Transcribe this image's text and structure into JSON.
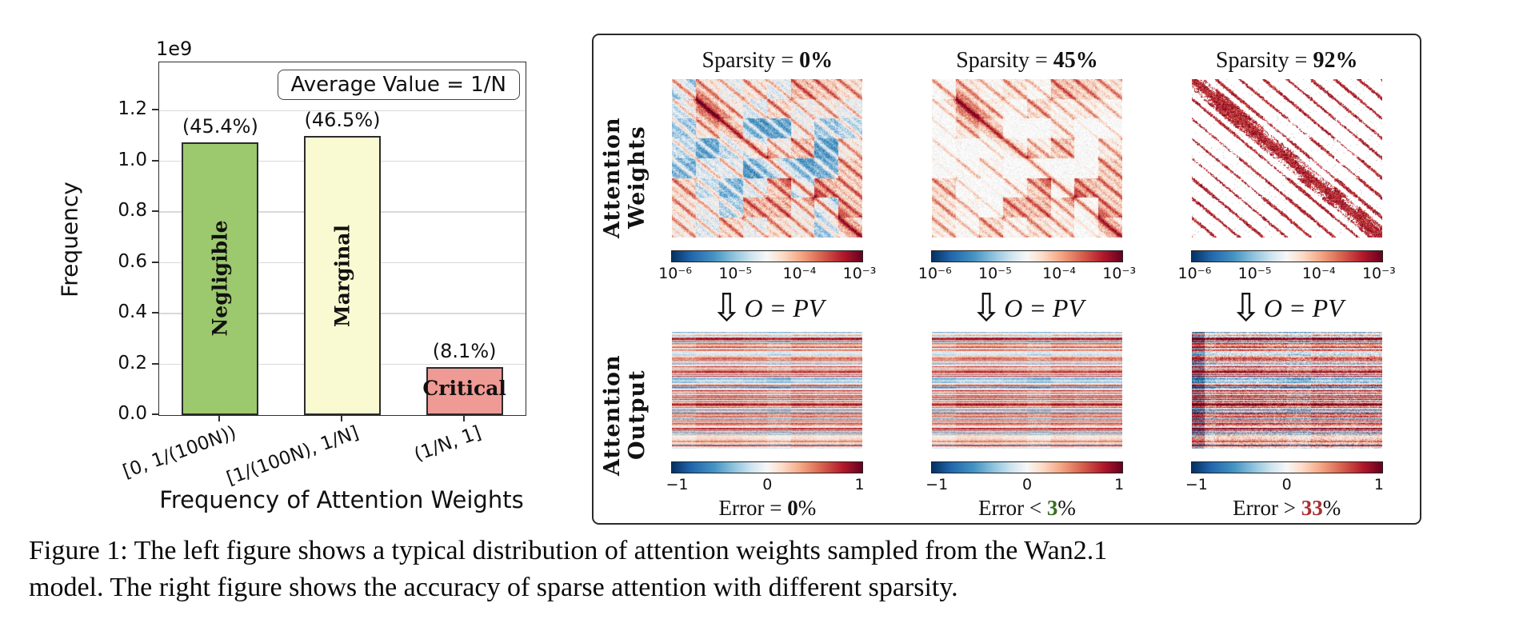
{
  "figure_caption": {
    "line1": "Figure 1: The left figure shows a typical distribution of attention weights sampled from the Wan2.1",
    "line2": "model. The right figure shows the accuracy of sparse attention with different sparsity."
  },
  "chart_data": {
    "type": "bar",
    "title": "",
    "categories": [
      "[0, 1/(100N))",
      "[1/(100N), 1/N]",
      "(1/N, 1]"
    ],
    "values": [
      1075000000,
      1100000000,
      190000000
    ],
    "percent_labels": [
      "(45.4%)",
      "(46.5%)",
      "(8.1%)"
    ],
    "bar_labels": [
      "Negligible",
      "Marginal",
      "Critical"
    ],
    "bar_colors": [
      "#9cc96d",
      "#fafad2",
      "#ef9a94"
    ],
    "bar_edge_color": "#2b2b2b",
    "offset_text": "1e9",
    "xlabel": "Frequency of Attention Weights",
    "ylabel": "Frequency",
    "ylim": [
      0,
      1390000000
    ],
    "yticks": [
      "0.0",
      "0.2",
      "0.4",
      "0.6",
      "0.8",
      "1.0",
      "1.2"
    ],
    "legend_label": "Average Value = 1/N",
    "legend_position": "upper right",
    "grid": true
  },
  "panel": {
    "row_labels": [
      "Attention Weights",
      "Attention Output"
    ],
    "weights_colorbar": {
      "scale": "log",
      "ticks": [
        "10⁻⁶",
        "10⁻⁵",
        "10⁻⁴",
        "10⁻³"
      ]
    },
    "output_colorbar": {
      "ticks": [
        "−1",
        "0",
        "1"
      ]
    },
    "colormap": {
      "low": "#053061",
      "mid": "#f7f7f7",
      "high": "#67001f"
    },
    "columns": [
      {
        "sparsity_prefix": "Sparsity = ",
        "sparsity_value": "0%",
        "formula": "O = PV",
        "error_prefix": "Error = ",
        "error_value": "0",
        "error_unit": "%",
        "error_value_color": "#111111"
      },
      {
        "sparsity_prefix": "Sparsity = ",
        "sparsity_value": "45%",
        "formula": "O = PV",
        "error_prefix": "Error < ",
        "error_value": "3",
        "error_unit": "%",
        "error_value_color": "#3c6e22"
      },
      {
        "sparsity_prefix": "Sparsity = ",
        "sparsity_value": "92%",
        "formula": "O = PV",
        "error_prefix": "Error > ",
        "error_value": "33",
        "error_unit": "%",
        "error_value_color": "#a93034"
      }
    ]
  }
}
